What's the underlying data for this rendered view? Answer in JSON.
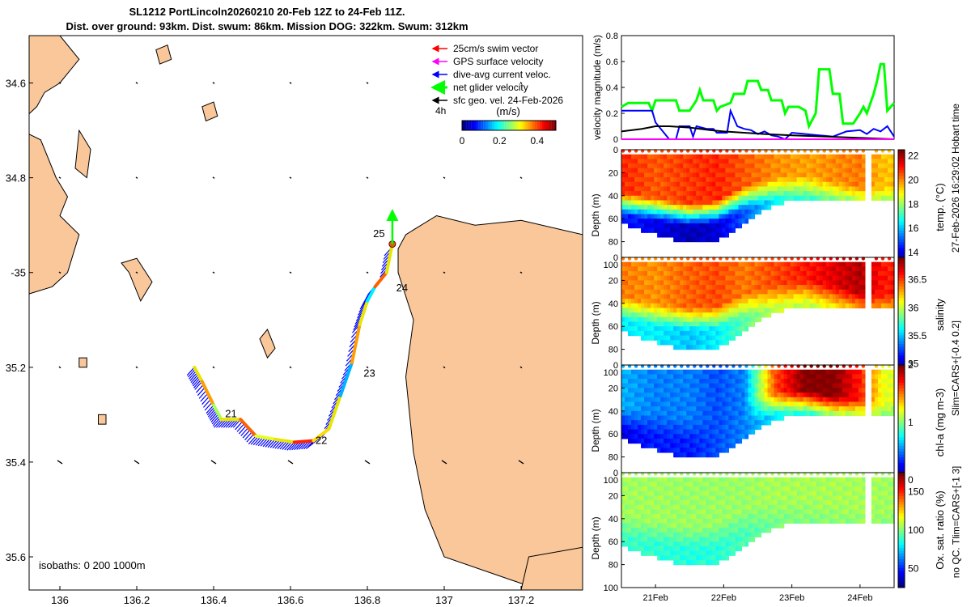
{
  "header": {
    "title_line1": "SL1212 PortLincoln20260210 20-Feb 12Z to 24-Feb 11Z.",
    "title_line2": "Dist. over ground: 93km. Dist. swum: 86km. Mission DOG: 322km. Swum: 312km"
  },
  "side_text": {
    "hobart": "27-Feb-2026 16:29:02 Hobart time",
    "slim": "Slim=CARS+[-0.4 0.2]",
    "tlim": "no QC. Tlim=CARS+[-1 3]"
  },
  "colors": {
    "land": "#f9c79a",
    "swim_vector": "#ff0000",
    "gps": "#ff00ff",
    "dive_avg": "#0000ff",
    "net_glider": "#00ff00",
    "sfc_geo": "#000000",
    "track_yellow": "#e6e600"
  },
  "chart_data": [
    {
      "type": "map",
      "legend": [
        {
          "label": "25cm/s swim vector",
          "color": "#ff0000"
        },
        {
          "label": "GPS surface velocity",
          "color": "#ff00ff"
        },
        {
          "label": "dive-avg current veloc.",
          "color": "#0000ff"
        },
        {
          "label": "net glider velocity",
          "color": "#00ff00"
        },
        {
          "label": "sfc geo. vel. 24-Feb-2026",
          "color": "#000000"
        }
      ],
      "legend_extra": "4h",
      "colorbar": {
        "label": "(m/s)",
        "ticks": [
          "0",
          "0.2",
          "0.4"
        ],
        "range": [
          0,
          0.5
        ]
      },
      "isobaths_label": "isobaths: 0   200  1000m",
      "xlim": [
        135.92,
        137.36
      ],
      "ylim": [
        -35.67,
        -34.5
      ],
      "xticks": [
        136,
        136.2,
        136.4,
        136.6,
        136.8,
        137,
        137.2
      ],
      "xticklabels": [
        "136",
        "136.2",
        "136.4",
        "136.6",
        "136.8",
        "137",
        "137.2"
      ],
      "yticks": [
        -34.6,
        -34.8,
        -35,
        -35.2,
        -35.4,
        -35.6
      ],
      "yticklabels": [
        "34.6",
        "34.8",
        "-35",
        "35.2",
        "35.4",
        "35.6"
      ],
      "track": [
        [
          136.35,
          -35.2
        ],
        [
          136.37,
          -35.23
        ],
        [
          136.4,
          -35.28
        ],
        [
          136.42,
          -35.31
        ],
        [
          136.47,
          -35.31
        ],
        [
          136.51,
          -35.345
        ],
        [
          136.56,
          -35.352
        ],
        [
          136.61,
          -35.358
        ],
        [
          136.66,
          -35.355
        ],
        [
          136.7,
          -35.33
        ],
        [
          136.73,
          -35.26
        ],
        [
          136.76,
          -35.19
        ],
        [
          136.78,
          -35.11
        ],
        [
          136.8,
          -35.06
        ],
        [
          136.82,
          -35.03
        ],
        [
          136.85,
          -35.0
        ],
        [
          136.865,
          -34.94
        ]
      ],
      "day_labels": [
        {
          "label": "21",
          "lon": 136.43,
          "lat": -35.305
        },
        {
          "label": "22",
          "lon": 136.665,
          "lat": -35.362
        },
        {
          "label": "23",
          "lon": 136.79,
          "lat": -35.22
        },
        {
          "label": "24",
          "lon": 136.875,
          "lat": -35.04
        },
        {
          "label": "25",
          "lon": 136.815,
          "lat": -34.925
        }
      ],
      "end_point": {
        "lon": 136.865,
        "lat": -34.94
      },
      "net_velocity_arrow": {
        "lon": 136.865,
        "lat": -34.94,
        "dlon": 0,
        "dlat": 0.07
      }
    },
    {
      "type": "line",
      "ylabel": "velocity magnitude (m/s)",
      "ylim": [
        0,
        0.8
      ],
      "yticks": [
        0,
        0.2,
        0.4,
        0.6,
        0.8
      ],
      "xlim": [
        20.5,
        24.5
      ],
      "series": [
        {
          "name": "net glider velocity",
          "color": "#00ff00",
          "x": [
            20.5,
            20.6,
            20.9,
            20.95,
            21.0,
            21.3,
            21.35,
            21.5,
            21.6,
            21.65,
            21.7,
            21.85,
            21.9,
            21.95,
            22.1,
            22.15,
            22.3,
            22.35,
            22.5,
            22.55,
            22.65,
            22.7,
            22.85,
            22.9,
            22.95,
            23.1,
            23.2,
            23.25,
            23.35,
            23.4,
            23.55,
            23.6,
            23.7,
            23.75,
            23.9,
            24.0,
            24.05,
            24.1,
            24.2,
            24.25,
            24.3,
            24.35,
            24.4,
            24.5
          ],
          "values": [
            0.25,
            0.28,
            0.28,
            0.22,
            0.3,
            0.3,
            0.22,
            0.22,
            0.3,
            0.38,
            0.3,
            0.3,
            0.22,
            0.25,
            0.28,
            0.35,
            0.35,
            0.45,
            0.45,
            0.38,
            0.38,
            0.3,
            0.3,
            0.2,
            0.25,
            0.25,
            0.22,
            0.1,
            0.2,
            0.54,
            0.54,
            0.35,
            0.35,
            0.12,
            0.12,
            0.2,
            0.25,
            0.2,
            0.35,
            0.45,
            0.58,
            0.58,
            0.22,
            0.28
          ]
        },
        {
          "name": "dive-avg current veloc.",
          "color": "#0000ff",
          "x": [
            20.5,
            20.95,
            21.0,
            21.2,
            21.3,
            21.35,
            21.5,
            21.55,
            21.6,
            21.75,
            21.85,
            21.9,
            22.05,
            22.1,
            22.2,
            22.3,
            22.4,
            22.5,
            22.6,
            22.7,
            22.8,
            22.9,
            23.0,
            23.2,
            23.4,
            23.6,
            23.8,
            24.0,
            24.1,
            24.2,
            24.3,
            24.4,
            24.5
          ],
          "values": [
            0.22,
            0.22,
            0.13,
            0.0,
            0.0,
            0.1,
            0.1,
            0.02,
            0.1,
            0.08,
            0.08,
            0.05,
            0.05,
            0.22,
            0.1,
            0.08,
            0.07,
            0.04,
            0.06,
            0.03,
            0.02,
            0.0,
            0.05,
            0.04,
            0.03,
            0.02,
            0.06,
            0.07,
            0.04,
            0.08,
            0.06,
            0.1,
            0.02
          ]
        },
        {
          "name": "sfc geo. vel.",
          "color": "#000000",
          "x": [
            20.5,
            20.8,
            21.0,
            21.2,
            21.5,
            21.8,
            22.0,
            22.3,
            22.6,
            23.0,
            23.5,
            24.0,
            24.5
          ],
          "values": [
            0.06,
            0.08,
            0.1,
            0.1,
            0.09,
            0.07,
            0.06,
            0.05,
            0.04,
            0.03,
            0.02,
            0.01,
            0.0
          ]
        },
        {
          "name": "GPS surface velocity",
          "color": "#ff00ff",
          "x": [
            20.5,
            22.0,
            24.5
          ],
          "values": [
            0.0,
            0.0,
            0.0
          ]
        }
      ]
    },
    {
      "type": "heatmap",
      "variable": "temperature",
      "ylabel": "Depth (m)",
      "clabel": "temp. (°C)",
      "clim": [
        13,
        22.5
      ],
      "cticks": [
        14,
        16,
        18,
        20,
        22
      ],
      "yticks": [
        0,
        20,
        40,
        60,
        80,
        100
      ],
      "profile_days": [
        20.5,
        21.0,
        21.5,
        21.9,
        22.3,
        22.75,
        23.2,
        23.6,
        24.0,
        24.35
      ],
      "mixed_layer_depth_m": [
        35,
        40,
        45,
        42,
        30,
        22,
        20,
        25,
        30,
        30
      ],
      "max_depth_m": [
        62,
        72,
        80,
        78,
        62,
        45,
        42,
        42,
        42,
        42
      ],
      "surface_values": [
        21,
        20.5,
        20.8,
        21,
        20.5,
        20,
        19.8,
        20,
        20.2,
        19.5
      ],
      "deep_values": [
        14.5,
        14,
        13.5,
        13.8,
        15,
        16.5,
        17,
        17,
        16.8,
        17
      ]
    },
    {
      "type": "heatmap",
      "variable": "salinity",
      "ylabel": "Depth (m)",
      "clabel": "salinity",
      "clim": [
        34.85,
        36.9
      ],
      "cticks": [
        35,
        35.5,
        36,
        36.5
      ],
      "yticks": [
        0,
        20,
        40,
        60,
        80,
        100
      ],
      "profile_days": [
        20.5,
        21.0,
        21.5,
        21.9,
        22.3,
        22.75,
        23.2,
        23.6,
        24.0,
        24.35
      ],
      "mixed_layer_depth_m": [
        32,
        38,
        42,
        40,
        30,
        22,
        18,
        22,
        28,
        30
      ],
      "max_depth_m": [
        62,
        72,
        80,
        78,
        62,
        45,
        42,
        42,
        42,
        42
      ],
      "surface_values": [
        36.4,
        36.35,
        36.45,
        36.5,
        36.4,
        36.5,
        36.6,
        36.7,
        36.8,
        36.6
      ],
      "deep_values": [
        35.6,
        35.6,
        35.5,
        35.6,
        35.8,
        36.0,
        36.0,
        36.1,
        36.1,
        36.1
      ]
    },
    {
      "type": "heatmap",
      "variable": "chlorophyll-a",
      "ylabel": "Depth (m)",
      "clabel": "chl-a (mg m-3)",
      "clim": [
        0,
        2
      ],
      "cticks": [
        0,
        1,
        2
      ],
      "yticks": [
        0,
        20,
        40,
        60,
        80,
        100
      ],
      "profile_days": [
        20.5,
        21.0,
        21.5,
        21.9,
        22.3,
        22.75,
        23.2,
        23.6,
        24.0,
        24.35
      ],
      "mixed_layer_depth_m": [
        35,
        40,
        45,
        42,
        30,
        22,
        20,
        25,
        28,
        30
      ],
      "max_depth_m": [
        62,
        72,
        80,
        78,
        62,
        45,
        42,
        42,
        42,
        42
      ],
      "surface_values": [
        0.6,
        0.5,
        0.5,
        0.4,
        0.5,
        1.6,
        2.0,
        2.0,
        1.7,
        1.2
      ],
      "deep_values": [
        0.2,
        0.3,
        0.3,
        0.4,
        0.5,
        0.7,
        0.8,
        0.8,
        0.8,
        0.9
      ]
    },
    {
      "type": "heatmap",
      "variable": "oxygen saturation",
      "ylabel": "Depth (m)",
      "clabel": "Ox. sat. ratio (%)",
      "clim": [
        25,
        175
      ],
      "cticks": [
        50,
        100,
        150
      ],
      "yticks": [
        0,
        20,
        40,
        60,
        80,
        100
      ],
      "xticks": [
        21,
        22,
        23,
        24
      ],
      "xticklabels": [
        "21Feb",
        "22Feb",
        "23Feb",
        "24Feb"
      ],
      "profile_days": [
        20.5,
        21.0,
        21.5,
        21.9,
        22.3,
        22.75,
        23.2,
        23.6,
        24.0,
        24.35
      ],
      "mixed_layer_depth_m": [
        35,
        40,
        45,
        42,
        30,
        22,
        20,
        25,
        28,
        30
      ],
      "max_depth_m": [
        62,
        72,
        80,
        78,
        62,
        45,
        42,
        42,
        42,
        42
      ],
      "surface_values": [
        105,
        105,
        104,
        104,
        104,
        106,
        106,
        106,
        106,
        105
      ],
      "deep_values": [
        90,
        88,
        86,
        87,
        92,
        98,
        100,
        100,
        100,
        100
      ]
    }
  ]
}
